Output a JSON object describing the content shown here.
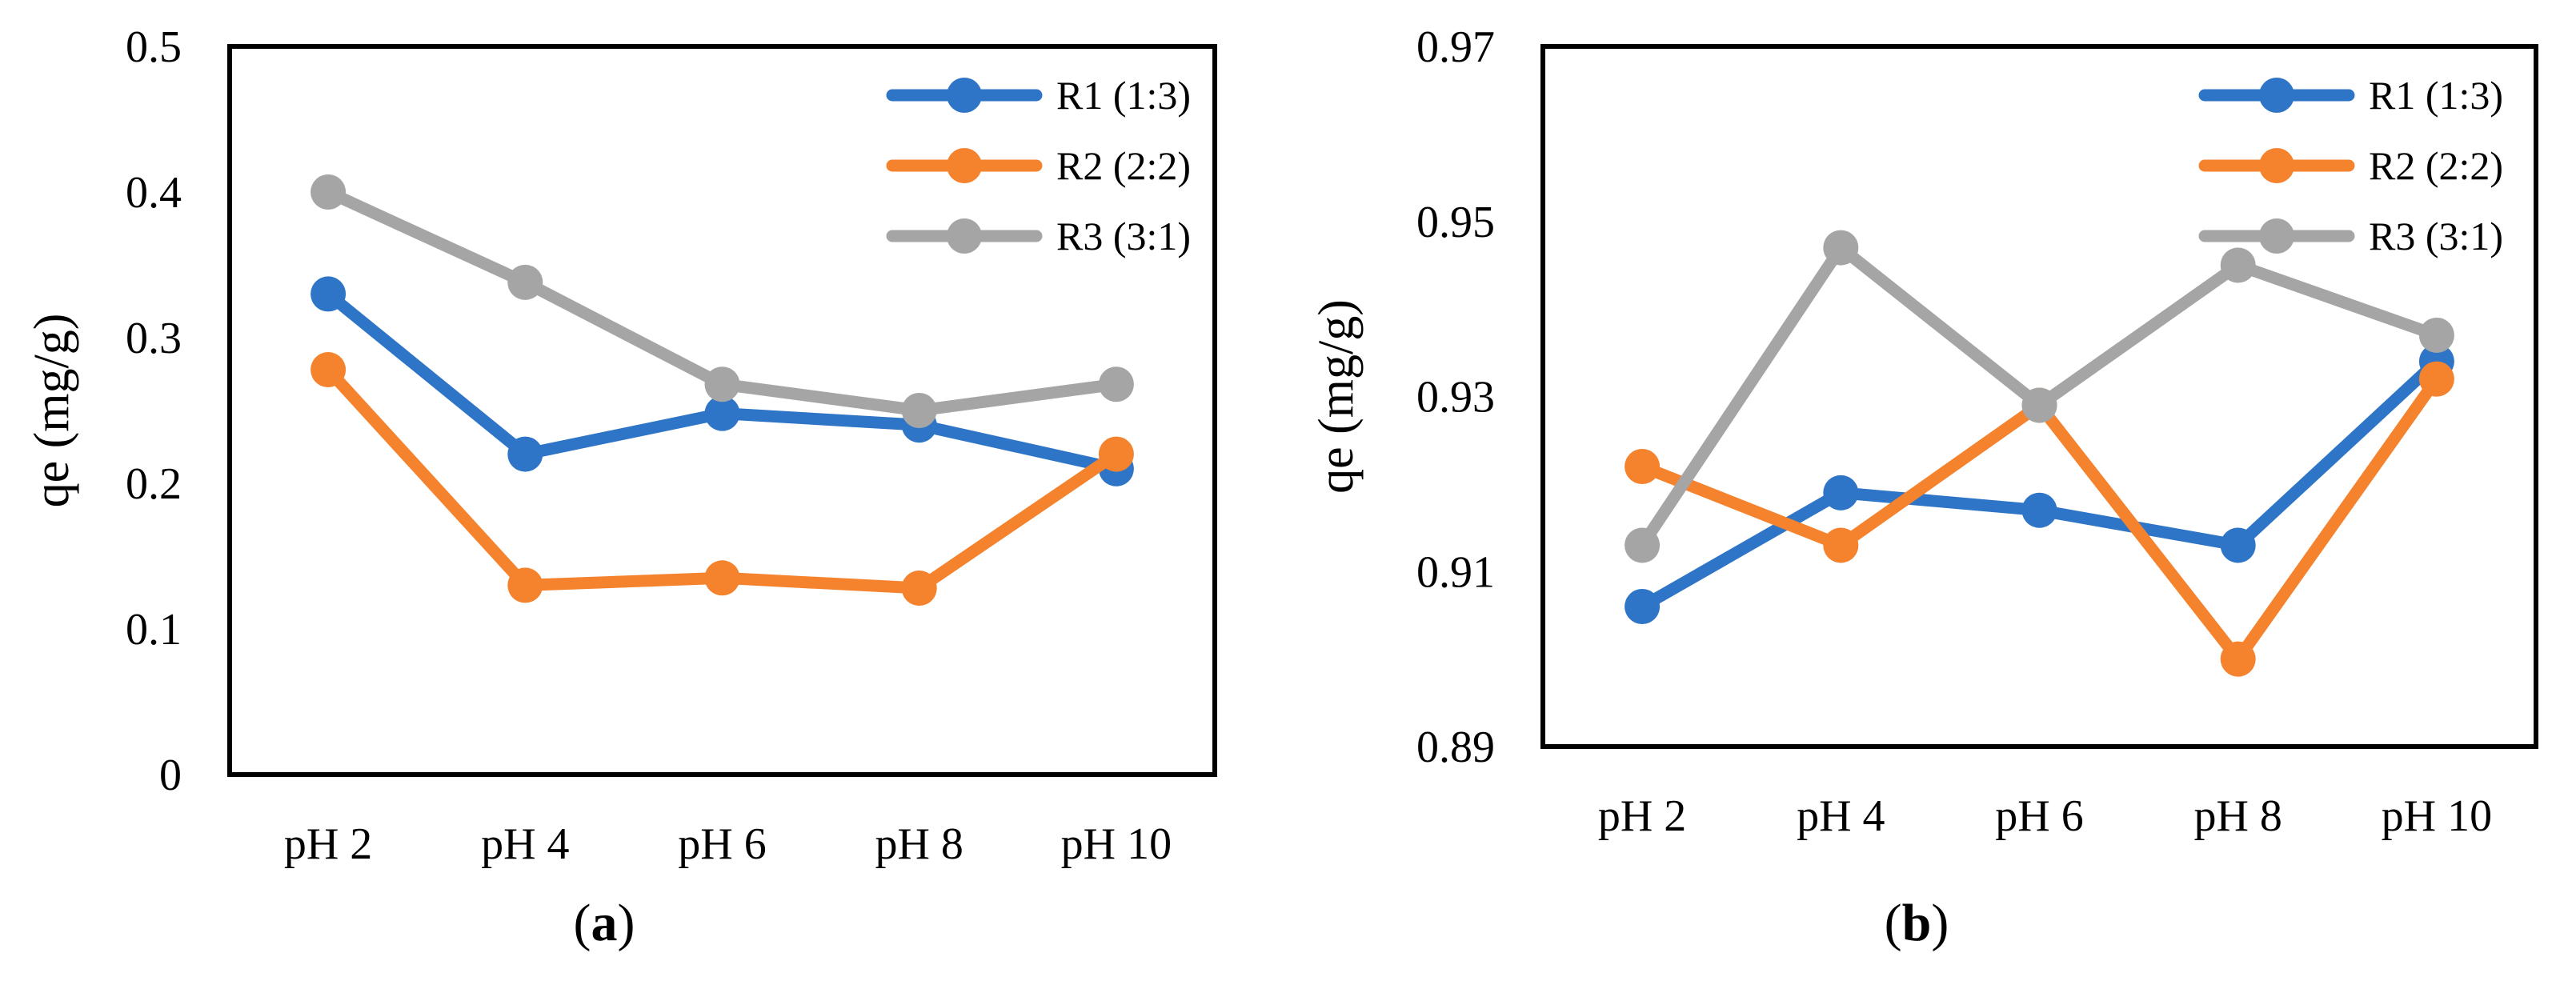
{
  "chart_data": [
    {
      "type": "line",
      "caption_letter": "a",
      "ylabel": "qe (mg/g)",
      "xlabel": "",
      "categories": [
        "pH 2",
        "pH 4",
        "pH 6",
        "pH 8",
        "pH 10"
      ],
      "ylim": [
        0,
        0.5
      ],
      "yticks": [
        0,
        0.1,
        0.2,
        0.3,
        0.4,
        0.5
      ],
      "ytick_labels": [
        "0",
        "0.1",
        "0.2",
        "0.3",
        "0.4",
        "0.5"
      ],
      "grid": false,
      "legend_position": "top-right",
      "series": [
        {
          "name": "R1 (1:3)",
          "color": "#2e75c7",
          "values": [
            0.33,
            0.22,
            0.248,
            0.24,
            0.21
          ]
        },
        {
          "name": "R2 (2:2)",
          "color": "#f5822d",
          "values": [
            0.278,
            0.13,
            0.135,
            0.128,
            0.22
          ]
        },
        {
          "name": "R3 (3:1)",
          "color": "#a5a5a5",
          "values": [
            0.4,
            0.338,
            0.268,
            0.25,
            0.268
          ]
        }
      ]
    },
    {
      "type": "line",
      "caption_letter": "b",
      "ylabel": "qe (mg/g)",
      "xlabel": "",
      "categories": [
        "pH 2",
        "pH 4",
        "pH 6",
        "pH 8",
        "pH 10"
      ],
      "ylim": [
        0.89,
        0.97
      ],
      "yticks": [
        0.89,
        0.91,
        0.93,
        0.95,
        0.97
      ],
      "ytick_labels": [
        "0.89",
        "0.91",
        "0.93",
        "0.95",
        "0.97"
      ],
      "grid": false,
      "legend_position": "top-right",
      "series": [
        {
          "name": "R1 (1:3)",
          "color": "#2e75c7",
          "values": [
            0.906,
            0.919,
            0.917,
            0.913,
            0.934
          ]
        },
        {
          "name": "R2 (2:2)",
          "color": "#f5822d",
          "values": [
            0.922,
            0.913,
            0.929,
            0.9,
            0.932
          ]
        },
        {
          "name": "R3 (3:1)",
          "color": "#a5a5a5",
          "values": [
            0.913,
            0.947,
            0.929,
            0.945,
            0.937
          ]
        }
      ]
    }
  ]
}
